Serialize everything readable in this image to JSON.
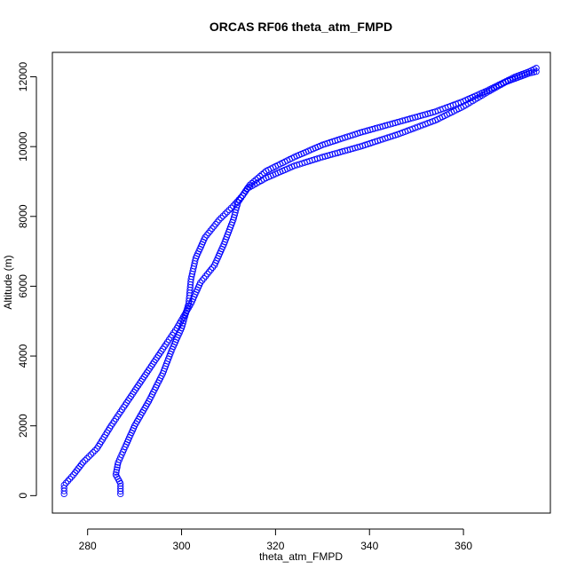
{
  "chart_data": {
    "type": "scatter",
    "title": "ORCAS RF06 theta_atm_FMPD",
    "xlabel": "theta_atm_FMPD",
    "ylabel": "Altitude (m)",
    "xlim": [
      272.5,
      378.5
    ],
    "ylim": [
      -500,
      12700
    ],
    "xticks": [
      280,
      300,
      320,
      340,
      360
    ],
    "yticks": [
      0,
      2000,
      4000,
      6000,
      8000,
      10000,
      12000
    ],
    "grid": false,
    "marker": "open-circle",
    "point_color": "#0000ff",
    "series": [
      {
        "points": [
          [
            275,
            50
          ],
          [
            275,
            300
          ],
          [
            277,
            600
          ],
          [
            279,
            950
          ],
          [
            282,
            1350
          ],
          [
            285,
            2000
          ],
          [
            288,
            2600
          ],
          [
            292,
            3400
          ],
          [
            296,
            4200
          ],
          [
            299,
            4800
          ],
          [
            302,
            5500
          ],
          [
            304,
            6100
          ],
          [
            307,
            6600
          ],
          [
            309,
            7200
          ],
          [
            311,
            7900
          ],
          [
            312,
            8400
          ],
          [
            314,
            8800
          ],
          [
            318,
            9100
          ],
          [
            324,
            9450
          ],
          [
            330,
            9700
          ],
          [
            338,
            10000
          ],
          [
            346,
            10350
          ],
          [
            354,
            10750
          ],
          [
            360,
            11150
          ],
          [
            365,
            11550
          ],
          [
            369,
            11850
          ],
          [
            372,
            12000
          ],
          [
            374,
            12100
          ],
          [
            375.5,
            12150
          ]
        ]
      },
      {
        "points": [
          [
            287,
            50
          ],
          [
            287,
            350
          ],
          [
            286,
            600
          ],
          [
            286.5,
            950
          ],
          [
            288,
            1400
          ],
          [
            290,
            2000
          ],
          [
            293,
            2700
          ],
          [
            296,
            3500
          ],
          [
            298,
            4200
          ],
          [
            300,
            4800
          ],
          [
            301.5,
            5500
          ],
          [
            302,
            6200
          ],
          [
            303,
            6800
          ],
          [
            305,
            7400
          ],
          [
            308,
            7900
          ],
          [
            311,
            8300
          ],
          [
            313,
            8600
          ],
          [
            314.5,
            8900
          ],
          [
            318,
            9300
          ],
          [
            324,
            9700
          ],
          [
            330,
            10050
          ],
          [
            338,
            10400
          ],
          [
            346,
            10700
          ],
          [
            354,
            11000
          ],
          [
            360,
            11300
          ],
          [
            365,
            11600
          ],
          [
            368,
            11800
          ],
          [
            371,
            12000
          ],
          [
            374,
            12150
          ],
          [
            375.5,
            12250
          ]
        ]
      }
    ]
  }
}
